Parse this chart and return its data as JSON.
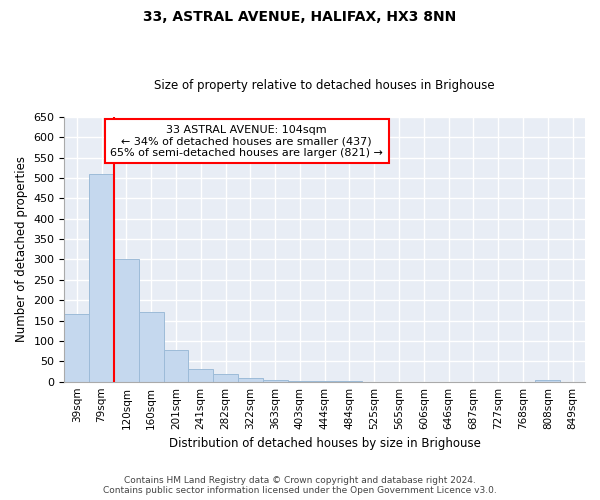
{
  "title": "33, ASTRAL AVENUE, HALIFAX, HX3 8NN",
  "subtitle": "Size of property relative to detached houses in Brighouse",
  "xlabel": "Distribution of detached houses by size in Brighouse",
  "ylabel": "Number of detached properties",
  "bar_color": "#c5d8ee",
  "bar_edge_color": "#9dbbd8",
  "background_color": "#e8edf5",
  "grid_color": "#ffffff",
  "annotation_title": "33 ASTRAL AVENUE: 104sqm",
  "annotation_line1": "← 34% of detached houses are smaller (437)",
  "annotation_line2": "65% of semi-detached houses are larger (821) →",
  "categories": [
    "39sqm",
    "79sqm",
    "120sqm",
    "160sqm",
    "201sqm",
    "241sqm",
    "282sqm",
    "322sqm",
    "363sqm",
    "403sqm",
    "444sqm",
    "484sqm",
    "525sqm",
    "565sqm",
    "606sqm",
    "646sqm",
    "687sqm",
    "727sqm",
    "768sqm",
    "808sqm",
    "849sqm"
  ],
  "values": [
    165,
    510,
    302,
    170,
    78,
    32,
    20,
    8,
    5,
    2,
    1,
    1,
    0,
    0,
    0,
    0,
    0,
    0,
    0,
    5,
    0
  ],
  "ylim": [
    0,
    650
  ],
  "yticks": [
    0,
    50,
    100,
    150,
    200,
    250,
    300,
    350,
    400,
    450,
    500,
    550,
    600,
    650
  ],
  "red_line_index": 2,
  "footer_line1": "Contains HM Land Registry data © Crown copyright and database right 2024.",
  "footer_line2": "Contains public sector information licensed under the Open Government Licence v3.0."
}
